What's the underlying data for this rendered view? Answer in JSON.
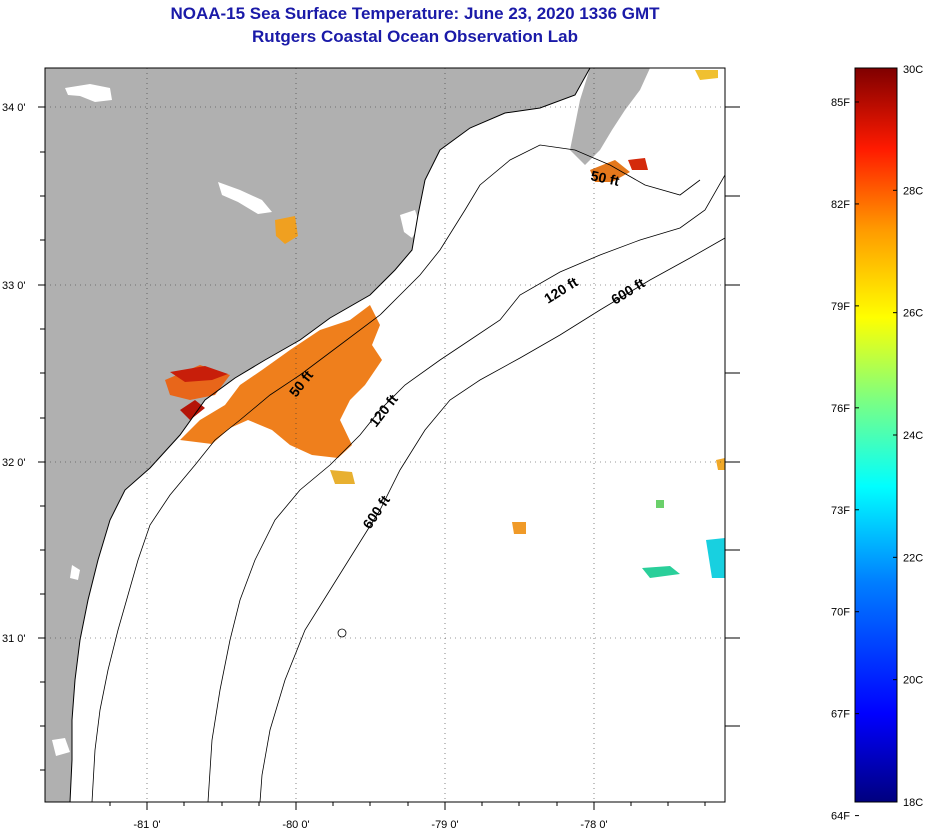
{
  "header": {
    "title": "NOAA-15 Sea Surface Temperature:  June 23, 2020 1336 GMT",
    "subtitle": "Rutgers Coastal Ocean Observation Lab"
  },
  "map": {
    "lat_ticks": [
      "34 0'",
      "33 0'",
      "32 0'",
      "31 0'"
    ],
    "lon_ticks": [
      "-81 0'",
      "-80 0'",
      "-79 0'",
      "-78 0'"
    ],
    "contour_labels": [
      "50 ft",
      "50 ft",
      "120 ft",
      "120 ft",
      "600 ft",
      "600 ft"
    ],
    "colors": {
      "land": "#b0b0b0",
      "ocean": "#ffffff",
      "warm_sst": "#ef7f1c"
    }
  },
  "colorbar": {
    "fahrenheit_labels": [
      "85F",
      "82F",
      "79F",
      "76F",
      "73F",
      "70F",
      "67F",
      "64F"
    ],
    "celsius_labels": [
      "30C",
      "28C",
      "26C",
      "24C",
      "22C",
      "20C",
      "18C"
    ],
    "range_c": [
      18,
      30
    ],
    "colors": [
      "#00007f",
      "#0000ff",
      "#007fff",
      "#00ffff",
      "#7fff7f",
      "#ffff00",
      "#ff7f00",
      "#ff0000",
      "#7f0000"
    ]
  }
}
